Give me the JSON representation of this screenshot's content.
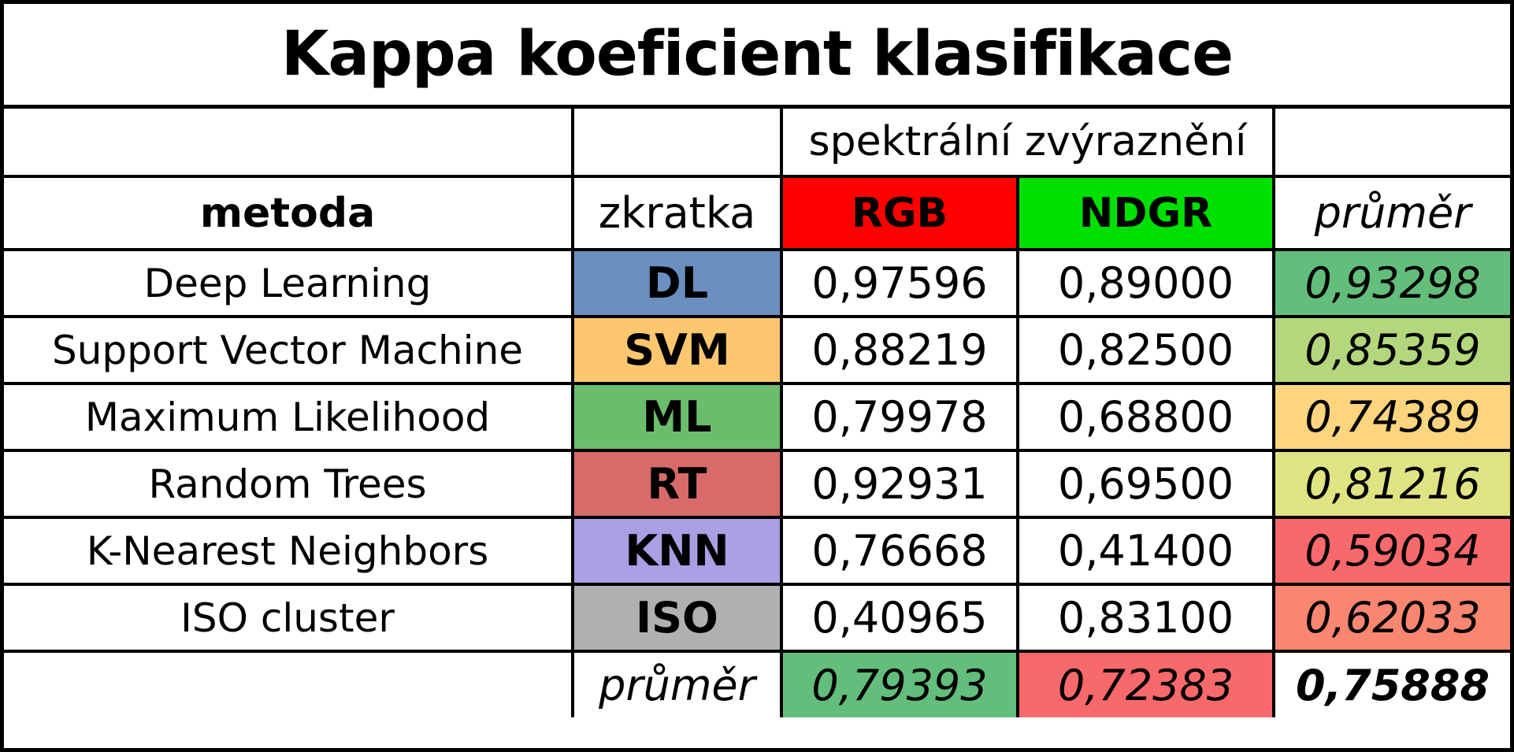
{
  "title": "Kappa koeficient klasifikace",
  "group_header": "spektrální zvýraznění",
  "headers": {
    "method": "metoda",
    "abbr": "zkratka",
    "rgb": "RGB",
    "ndgr": "NDGR",
    "avg": "průměr"
  },
  "header_colors": {
    "rgb": "#ff0000",
    "ndgr": "#00e000"
  },
  "rows": [
    {
      "method": "Deep Learning",
      "abbr": "DL",
      "rgb": "0,97596",
      "ndgr": "0,89000",
      "avg": "0,93298",
      "abbr_color": "#6a8fc0",
      "avg_color": "#63be7b"
    },
    {
      "method": "Support Vector Machine",
      "abbr": "SVM",
      "rgb": "0,88219",
      "ndgr": "0,82500",
      "avg": "0,85359",
      "abbr_color": "#fec76f",
      "avg_color": "#b4d77d"
    },
    {
      "method": "Maximum Likelihood",
      "abbr": "ML",
      "rgb": "0,79978",
      "ndgr": "0,68800",
      "avg": "0,74389",
      "abbr_color": "#6bbd6c",
      "avg_color": "#fed57f"
    },
    {
      "method": "Random Trees",
      "abbr": "RT",
      "rgb": "0,92931",
      "ndgr": "0,69500",
      "avg": "0,81216",
      "abbr_color": "#d86a6a",
      "avg_color": "#dfe382"
    },
    {
      "method": "K-Nearest Neighbors",
      "abbr": "KNN",
      "rgb": "0,76668",
      "ndgr": "0,41400",
      "avg": "0,59034",
      "abbr_color": "#a99fe3",
      "avg_color": "#f8696b"
    },
    {
      "method": "ISO cluster",
      "abbr": "ISO",
      "rgb": "0,40965",
      "ndgr": "0,83100",
      "avg": "0,62033",
      "abbr_color": "#b0b0b0",
      "avg_color": "#f98670"
    }
  ],
  "footer": {
    "label": "průměr",
    "rgb": "0,79393",
    "ndgr": "0,72383",
    "total": "0,75888",
    "rgb_color": "#63be7b",
    "ndgr_color": "#f8696b"
  }
}
